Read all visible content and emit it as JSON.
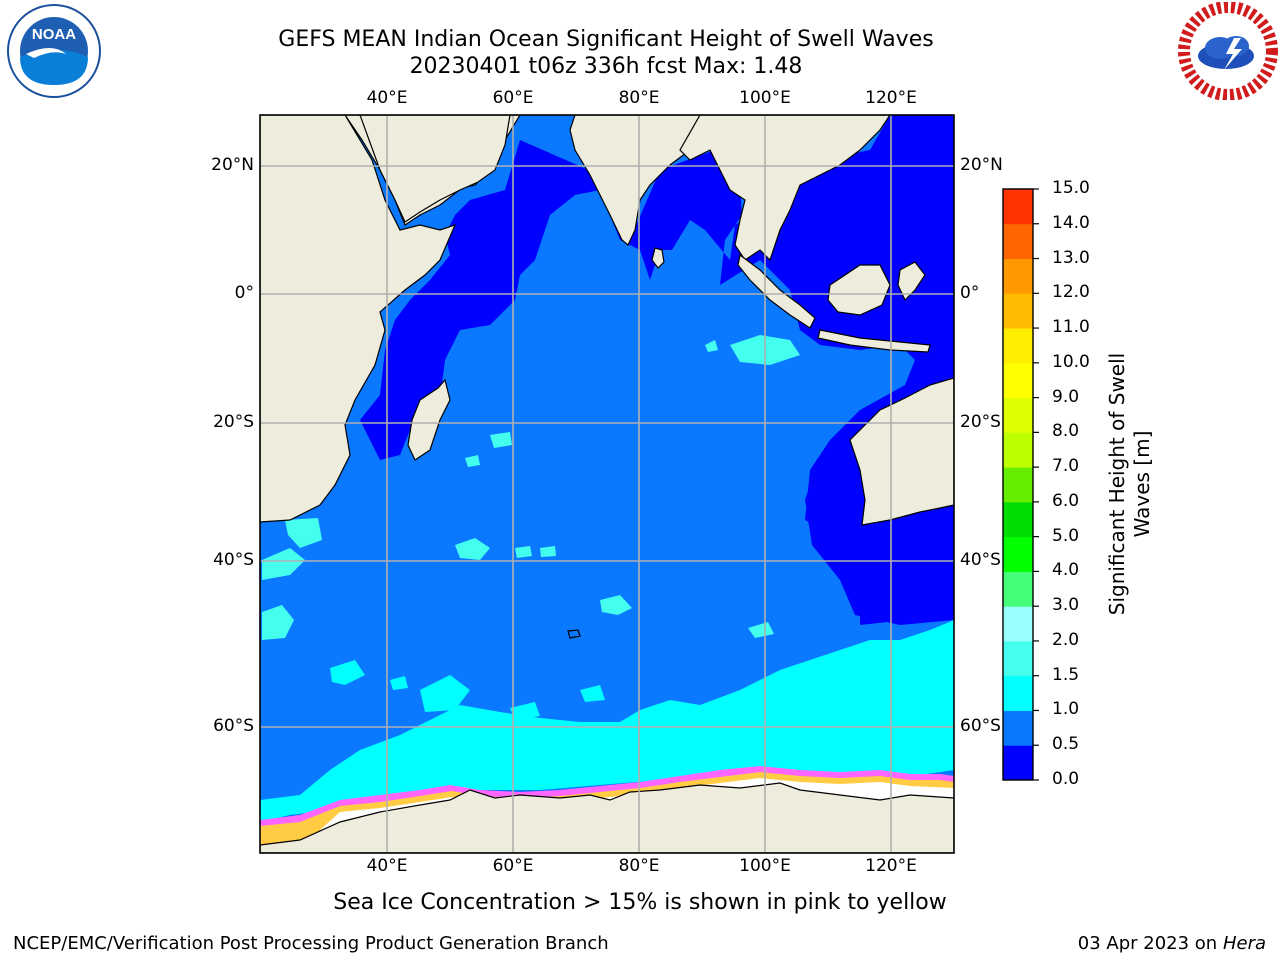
{
  "title": {
    "line1": "GEFS MEAN Indian Ocean Significant Height of Swell Waves",
    "line2": "20230401 t06z 336h fcst   Max: 1.48"
  },
  "logos": {
    "left": {
      "icon": "noaa-logo",
      "text": "NOAA"
    },
    "right": {
      "icon": "nws-logo",
      "text": "NATIONAL WEATHER SERVICE"
    }
  },
  "map": {
    "lon_top_labels": [
      "40°E",
      "60°E",
      "80°E",
      "100°E",
      "120°E"
    ],
    "lon_bottom_labels": [
      "40°E",
      "60°E",
      "80°E",
      "100°E",
      "120°E"
    ],
    "lat_left_labels": [
      "20°N",
      "0°",
      "20°S",
      "40°S",
      "60°S"
    ],
    "lat_right_labels": [
      "20°N",
      "0°",
      "20°S",
      "40°S",
      "60°S"
    ],
    "colors": {
      "land": "#eeecdc",
      "sea_ice": "#ffffff",
      "grid": "#b0b0b0"
    }
  },
  "colorbar": {
    "title_line1": "Significant Height of Swell",
    "title_line2": "Waves [m]",
    "tick_labels": [
      "0.0",
      "0.5",
      "1.0",
      "1.5",
      "2.0",
      "3.0",
      "4.0",
      "5.0",
      "6.0",
      "7.0",
      "8.0",
      "9.0",
      "10.0",
      "11.0",
      "12.0",
      "13.0",
      "14.0",
      "15.0"
    ],
    "colors": [
      "#0000ff",
      "#0a78ff",
      "#00ffff",
      "#44ffee",
      "#99ffff",
      "#44ff77",
      "#00ff00",
      "#00dd00",
      "#66ee00",
      "#bbff00",
      "#ddff00",
      "#ffff00",
      "#ffee00",
      "#ffbb00",
      "#ff9900",
      "#ff6600",
      "#ff3300",
      "#ff0000"
    ]
  },
  "note": "Sea Ice Concentration > 15% is shown in pink to yellow",
  "footer": {
    "left": "NCEP/EMC/Verification Post Processing Product Generation Branch",
    "right_prefix": "03 Apr 2023 on ",
    "right_host": "Hera"
  }
}
